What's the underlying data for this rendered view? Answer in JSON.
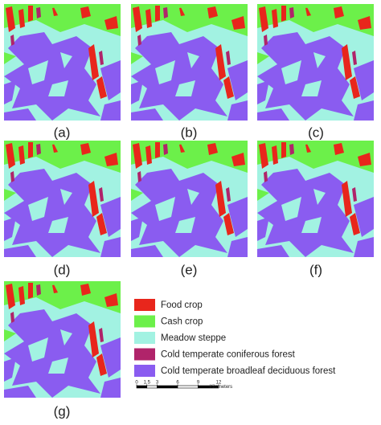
{
  "panels": [
    "(a)",
    "(b)",
    "(c)",
    "(d)",
    "(e)",
    "(f)",
    "(g)"
  ],
  "legend": [
    {
      "label": "Food crop",
      "color": "#e8261c"
    },
    {
      "label": "Cash crop",
      "color": "#6cf04a"
    },
    {
      "label": "Meadow steppe",
      "color": "#a2f2e2"
    },
    {
      "label": "Cold temperate coniferous forest",
      "color": "#b0246a"
    },
    {
      "label": "Cold temperate broadleaf deciduous forest",
      "color": "#8a5cf0"
    }
  ],
  "scale_bar": {
    "ticks": [
      0,
      1.5,
      3,
      6,
      9,
      12
    ],
    "unit": "Kilometers"
  }
}
